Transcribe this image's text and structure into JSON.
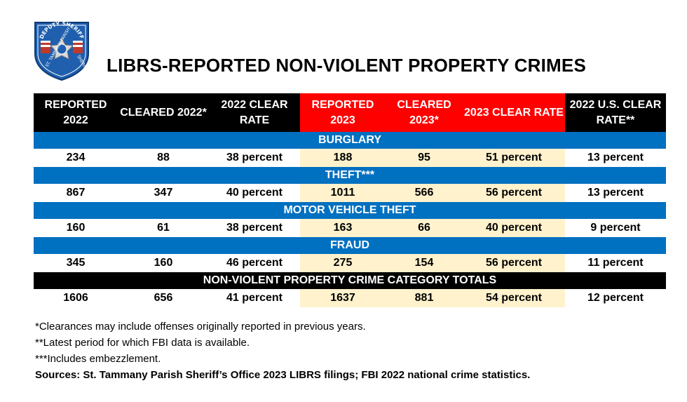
{
  "badge": {
    "top_text": "DEPUTY SHERIFF",
    "left_text": "ST. TAMMANY PARISH",
    "right_text": "SHERIFF'S OFFICE"
  },
  "title": "LIBRS-REPORTED NON-VIOLENT PROPERTY CRIMES",
  "table": {
    "headers": [
      {
        "label": "REPORTED 2022",
        "color": "#000000"
      },
      {
        "label": "CLEARED 2022*",
        "color": "#000000"
      },
      {
        "label": "2022 CLEAR RATE",
        "color": "#000000"
      },
      {
        "label": "REPORTED 2023",
        "color": "#ff0000"
      },
      {
        "label": "CLEARED 2023*",
        "color": "#ff0000"
      },
      {
        "label": "2023 CLEAR RATE",
        "color": "#ff0000"
      },
      {
        "label": "2022 U.S. CLEAR RATE**",
        "color": "#000000"
      }
    ],
    "categories": [
      {
        "name": "BURGLARY",
        "values": [
          "234",
          "88",
          "38 percent",
          "188",
          "95",
          "51 percent",
          "13 percent"
        ]
      },
      {
        "name": "THEFT***",
        "values": [
          "867",
          "347",
          "40 percent",
          "1011",
          "566",
          "56 percent",
          "13 percent"
        ]
      },
      {
        "name": "MOTOR VEHICLE THEFT",
        "values": [
          "160",
          "61",
          "38 percent",
          "163",
          "66",
          "40 percent",
          "9 percent"
        ]
      },
      {
        "name": "FRAUD",
        "values": [
          "345",
          "160",
          "46 percent",
          "275",
          "154",
          "56 percent",
          "11 percent"
        ]
      },
      {
        "name": "NON-VIOLENT PROPERTY CRIME CATEGORY TOTALS",
        "values": [
          "1606",
          "656",
          "41 percent",
          "1637",
          "881",
          "54 percent",
          "12 percent"
        ],
        "total": true
      }
    ]
  },
  "notes": [
    "*Clearances may include offenses originally reported in previous years.",
    "**Latest period for which FBI data is available.",
    "***Includes embezzlement."
  ],
  "sources": "Sources: St. Tammany Parish Sheriff’s Office 2023 LIBRS filings; FBI 2022 national crime statistics.",
  "colors": {
    "category_bar": "#0070c0",
    "highlight_2023": "#fff2cc",
    "header_2023": "#ff0000"
  }
}
